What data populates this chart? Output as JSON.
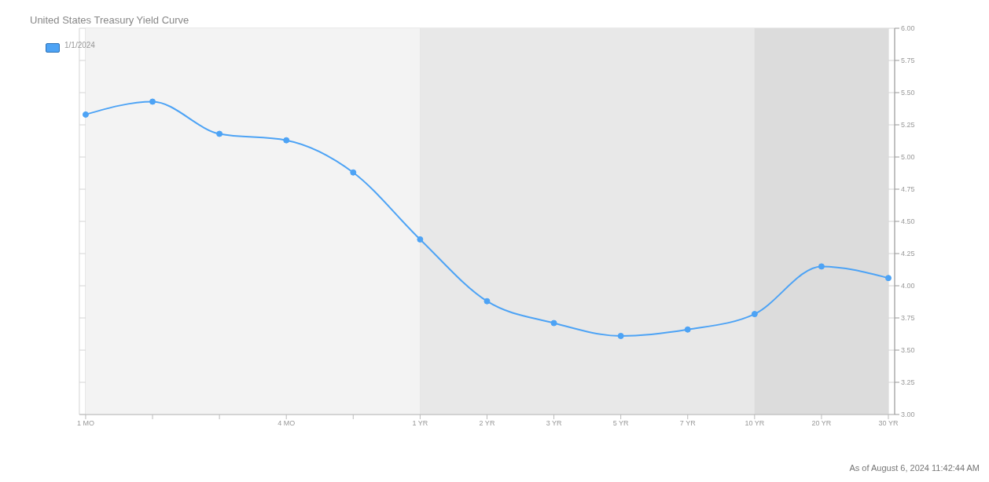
{
  "chart_data": {
    "type": "line",
    "title": "United States Treasury Yield Curve",
    "categories": [
      "1 MO",
      null,
      null,
      "4 MO",
      null,
      "1 YR",
      "2 YR",
      "3 YR",
      "5 YR",
      "7 YR",
      "10 YR",
      "20 YR",
      "30 YR"
    ],
    "series": [
      {
        "name": "1/1/2024",
        "color": "#4da3f5",
        "values": [
          5.33,
          5.43,
          5.18,
          5.13,
          4.88,
          4.36,
          3.88,
          3.71,
          3.61,
          3.66,
          3.78,
          4.15,
          4.06
        ]
      }
    ],
    "ylim": [
      3,
      6
    ],
    "yticks": [
      {
        "value": 3,
        "label": "3.00"
      },
      {
        "value": 3.25,
        "label": "3.25"
      },
      {
        "value": 3.5,
        "label": "3.50"
      },
      {
        "value": 3.75,
        "label": "3.75"
      },
      {
        "value": 4,
        "label": "4.00"
      },
      {
        "value": 4.25,
        "label": "4.25"
      },
      {
        "value": 4.5,
        "label": "4.50"
      },
      {
        "value": 4.75,
        "label": "4.75"
      },
      {
        "value": 5,
        "label": "5.00"
      },
      {
        "value": 5.25,
        "label": "5.25"
      },
      {
        "value": 5.5,
        "label": "5.50"
      },
      {
        "value": 5.75,
        "label": "5.75"
      },
      {
        "value": 6,
        "label": "6.00"
      }
    ],
    "bands": [
      {
        "axis": "x",
        "from": "1 MO",
        "to": "1 YR",
        "color": "#f3f3f3"
      },
      {
        "axis": "x",
        "from": "1 YR",
        "to": "10 YR",
        "color": "#e8e8e8"
      },
      {
        "axis": "x",
        "from": "10 YR",
        "to": "30 YR",
        "color": "#dcdcdc"
      }
    ],
    "annotations": [
      "As of August 6, 2024 11:42:44 AM"
    ],
    "grid": true,
    "legend": "top left",
    "marker": "circle",
    "line_style": "solid"
  }
}
